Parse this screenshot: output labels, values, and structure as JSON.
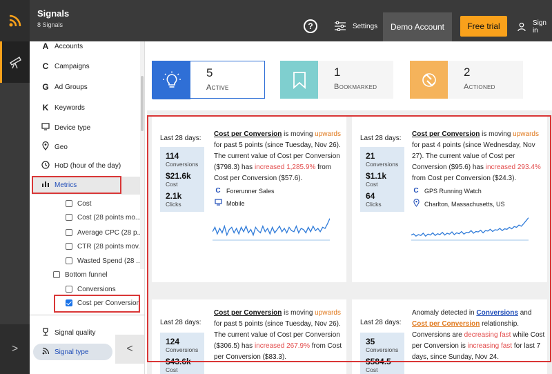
{
  "header": {
    "app_title": "Signals",
    "app_subtitle": "8 Signals",
    "help_label": "?",
    "settings_label": "Settings",
    "account_label": "Demo Account",
    "free_trial_label": "Free trial",
    "signin_label": "Sign in"
  },
  "sidebar": {
    "items": [
      {
        "icon": "A",
        "label": "Accounts"
      },
      {
        "icon": "C",
        "label": "Campaigns"
      },
      {
        "icon": "G",
        "label": "Ad Groups"
      },
      {
        "icon": "K",
        "label": "Keywords"
      },
      {
        "icon": "device-icon",
        "label": "Device type"
      },
      {
        "icon": "pin-icon",
        "label": "Geo"
      },
      {
        "icon": "clock-icon",
        "label": "HoD (hour of the day)"
      },
      {
        "icon": "chart-icon",
        "label": "Metrics"
      }
    ],
    "metric_options": [
      {
        "label": "Cost",
        "checked": false
      },
      {
        "label": "Cost (28 points mo...",
        "checked": false
      },
      {
        "label": "Average CPC (28 p...",
        "checked": false
      },
      {
        "label": "CTR (28 points mov...",
        "checked": false
      },
      {
        "label": "Wasted Spend (28 ...",
        "checked": false
      }
    ],
    "funnel_label": "Bottom funnel",
    "funnel_options": [
      {
        "label": "Conversions",
        "checked": false
      },
      {
        "label": "Cost per Conversion",
        "checked": true
      }
    ],
    "signal_quality_label": "Signal quality",
    "signal_type_label": "Signal type",
    "collapse_label": "<",
    "expand_label": ">"
  },
  "summary": [
    {
      "count": "5",
      "label": "Active",
      "icon": "lightbulb-icon",
      "color": "#2f6fd6"
    },
    {
      "count": "1",
      "label": "Bookmarked",
      "icon": "bookmark-icon",
      "color": "#7fcfcf"
    },
    {
      "count": "2",
      "label": "Actioned",
      "icon": "actioned-icon",
      "color": "#f5b35b"
    }
  ],
  "cards": [
    {
      "period": "Last 28 days:",
      "stats": [
        {
          "value": "114",
          "label": "Conversions"
        },
        {
          "value": "$21.6k",
          "label": "Cost"
        },
        {
          "value": "2.1k",
          "label": "Clicks"
        }
      ],
      "metric": "Cost per Conversion",
      "t1": " is moving ",
      "direction": "upwards",
      "t2": " for past 5 points (since Tuesday, Nov 26). The current value of Cost per Conversion ($798.3) has ",
      "change": "increased 1,285.9%",
      "t3": " from Cost per Conversion ($57.6).",
      "meta1": "Forerunner Sales",
      "meta2": "Mobile",
      "spark": [
        0.35,
        0.55,
        0.25,
        0.5,
        0.3,
        0.6,
        0.2,
        0.45,
        0.55,
        0.3,
        0.5,
        0.25,
        0.55,
        0.35,
        0.6,
        0.3,
        0.45,
        0.2,
        0.55,
        0.4,
        0.3,
        0.6,
        0.35,
        0.5,
        0.25,
        0.55,
        0.3,
        0.45,
        0.6,
        0.35,
        0.5,
        0.3,
        0.55,
        0.4,
        0.35,
        0.6,
        0.3,
        0.5,
        0.45,
        0.3,
        0.55,
        0.35,
        0.6,
        0.4,
        0.5,
        0.35,
        0.55,
        0.5,
        0.7,
        0.95
      ]
    },
    {
      "period": "Last 28 days:",
      "stats": [
        {
          "value": "21",
          "label": "Conversions"
        },
        {
          "value": "$1.1k",
          "label": "Cost"
        },
        {
          "value": "64",
          "label": "Clicks"
        }
      ],
      "metric": "Cost per Conversion",
      "t1": " is moving ",
      "direction": "upwards",
      "t2": " for past 4 points (since Wednesday, Nov 27). The current value of Cost per Conversion ($95.6) has ",
      "change": "increased 293.4%",
      "t3": " from Cost per Conversion ($24.3).",
      "meta1": "GPS Running Watch",
      "meta2": "Charlton, Massachusetts, US",
      "spark": [
        0.2,
        0.25,
        0.15,
        0.22,
        0.18,
        0.28,
        0.15,
        0.24,
        0.2,
        0.3,
        0.18,
        0.26,
        0.22,
        0.32,
        0.2,
        0.28,
        0.24,
        0.34,
        0.22,
        0.3,
        0.26,
        0.36,
        0.24,
        0.32,
        0.3,
        0.4,
        0.28,
        0.36,
        0.34,
        0.42,
        0.3,
        0.4,
        0.38,
        0.46,
        0.36,
        0.44,
        0.42,
        0.5,
        0.4,
        0.48,
        0.46,
        0.55,
        0.48,
        0.58,
        0.55,
        0.65,
        0.6,
        0.72,
        0.85,
        0.98
      ]
    },
    {
      "period": "Last 28 days:",
      "stats": [
        {
          "value": "124",
          "label": "Conversions"
        },
        {
          "value": "$43.6k",
          "label": "Cost"
        }
      ],
      "metric": "Cost per Conversion",
      "t1": " is moving ",
      "direction": "upwards",
      "t2": " for past 5 points (since Tuesday, Nov 26). The current value of Cost per Conversion ($306.5) has ",
      "change": "increased 267.9%",
      "t3": " from Cost per Conversion ($83.3)."
    },
    {
      "period": "Last 28 days:",
      "stats": [
        {
          "value": "35",
          "label": "Conversions"
        },
        {
          "value": "$584.5",
          "label": "Cost"
        }
      ],
      "a1": "Anomaly detected in ",
      "m1": "Conversions",
      "a2": " and ",
      "m2": "Cost per Conversion",
      "a3": " relationship. Conversions are ",
      "d1": "decreasing fast",
      "a4": " while Cost per Conversion is ",
      "d2": "increasing fast",
      "a5": " for last 7 days, since Sunday, Nov 24."
    }
  ]
}
